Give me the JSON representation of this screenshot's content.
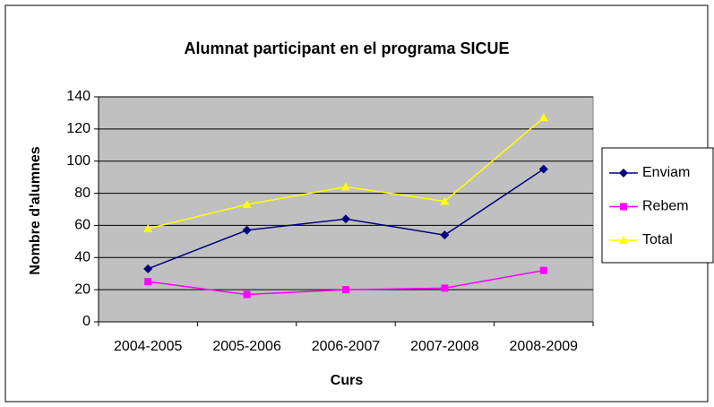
{
  "chart_data": {
    "type": "line",
    "title": "Alumnat participant en el programa SICUE",
    "xlabel": "Curs",
    "ylabel": "Nombre d'alumnes",
    "categories": [
      "2004-2005",
      "2005-2006",
      "2006-2007",
      "2007-2008",
      "2008-2009"
    ],
    "series": [
      {
        "name": "Enviam",
        "color": "#000080",
        "marker": "diamond",
        "values": [
          33,
          57,
          64,
          54,
          95
        ]
      },
      {
        "name": "Rebem",
        "color": "#FF00FF",
        "marker": "square",
        "values": [
          25,
          17,
          20,
          21,
          32
        ]
      },
      {
        "name": "Total",
        "color": "#FFFF00",
        "marker": "triangle",
        "values": [
          58,
          73,
          84,
          75,
          127
        ]
      }
    ],
    "ylim": [
      0,
      140
    ],
    "yticks": [
      0,
      20,
      40,
      60,
      80,
      100,
      120,
      140
    ],
    "grid": true,
    "legend": "right",
    "plot_background": "#C0C0C0"
  }
}
